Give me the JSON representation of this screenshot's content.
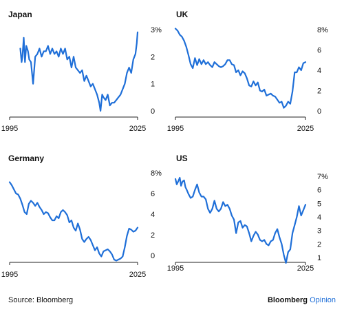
{
  "source_note": "Source: Bloomberg",
  "brand": {
    "name": "Bloomberg",
    "suffix": "Opinion",
    "suffix_color": "#1f6fd8"
  },
  "line_color": "#1f6fd8",
  "chart_data": [
    {
      "type": "line",
      "title": "Japan",
      "x_tick_labels": [
        "1995",
        "2025"
      ],
      "y_tick_labels": [
        "0",
        "1",
        "2",
        "3%"
      ],
      "y_ticks": [
        0,
        1,
        2,
        3
      ],
      "ylim": [
        0,
        3
      ],
      "xlim": [
        1995,
        2025
      ],
      "legend": "none",
      "grid": false,
      "series": [
        {
          "x": [
            1997.5,
            1997.8,
            1998.0,
            1998.3,
            1998.6,
            1998.9,
            1999.3,
            1999.6,
            2000.0,
            2000.5,
            2001.0,
            2001.5,
            2002.0,
            2002.5,
            2003.0,
            2003.5,
            2004.0,
            2004.5,
            2005.0,
            2005.5,
            2006.0,
            2006.5,
            2007.0,
            2007.5,
            2008.0,
            2008.5,
            2009.0,
            2009.5,
            2010.0,
            2010.5,
            2011.0,
            2011.5,
            2012.0,
            2012.5,
            2013.0,
            2013.5,
            2014.0,
            2014.5,
            2015.0,
            2015.5,
            2016.0,
            2016.3,
            2016.7,
            2017.0,
            2017.5,
            2018.0,
            2018.5,
            2019.0,
            2019.5,
            2020.0,
            2020.5,
            2021.0,
            2021.5,
            2022.0,
            2022.5,
            2023.0,
            2023.5,
            2024.0,
            2024.5,
            2024.8,
            2025.0
          ],
          "y": [
            2.3,
            1.8,
            2.0,
            2.7,
            1.8,
            2.4,
            2.2,
            1.9,
            1.8,
            1.0,
            2.0,
            2.1,
            2.3,
            2.0,
            2.2,
            2.2,
            2.4,
            2.1,
            2.3,
            2.1,
            2.2,
            2.0,
            2.3,
            2.1,
            2.3,
            1.9,
            2.0,
            1.6,
            2.0,
            1.6,
            1.5,
            1.4,
            1.5,
            1.1,
            1.3,
            1.1,
            0.9,
            1.0,
            0.8,
            0.6,
            0.3,
            0.0,
            0.6,
            0.5,
            0.4,
            0.6,
            0.2,
            0.3,
            0.3,
            0.4,
            0.5,
            0.6,
            0.8,
            1.0,
            1.4,
            1.6,
            1.4,
            1.9,
            2.1,
            2.5,
            2.9
          ]
        }
      ]
    },
    {
      "type": "line",
      "title": "UK",
      "x_tick_labels": [
        "1995",
        "2025"
      ],
      "y_tick_labels": [
        "0",
        "2",
        "4",
        "6",
        "8%"
      ],
      "y_ticks": [
        0,
        2,
        4,
        6,
        8
      ],
      "ylim": [
        0,
        8
      ],
      "xlim": [
        1995,
        2025
      ],
      "legend": "none",
      "grid": false,
      "series": [
        {
          "x": [
            1995.0,
            1995.5,
            1996.0,
            1996.5,
            1997.0,
            1997.5,
            1998.0,
            1998.5,
            1999.0,
            1999.5,
            2000.0,
            2000.5,
            2001.0,
            2001.5,
            2002.0,
            2002.5,
            2003.0,
            2003.5,
            2004.0,
            2004.5,
            2005.0,
            2005.5,
            2006.0,
            2006.5,
            2007.0,
            2007.5,
            2008.0,
            2008.5,
            2009.0,
            2009.5,
            2010.0,
            2010.5,
            2011.0,
            2011.5,
            2012.0,
            2012.5,
            2013.0,
            2013.5,
            2014.0,
            2014.5,
            2015.0,
            2015.5,
            2016.0,
            2016.5,
            2017.0,
            2017.5,
            2018.0,
            2018.5,
            2019.0,
            2019.5,
            2020.0,
            2020.5,
            2021.0,
            2021.5,
            2022.0,
            2022.5,
            2023.0,
            2023.5,
            2024.0,
            2024.5,
            2025.0
          ],
          "y": [
            8.1,
            7.9,
            7.5,
            7.3,
            6.9,
            6.3,
            5.5,
            4.6,
            4.2,
            5.2,
            4.5,
            5.1,
            4.6,
            5.0,
            4.6,
            4.8,
            4.5,
            4.3,
            4.8,
            4.6,
            4.4,
            4.3,
            4.4,
            4.6,
            5.0,
            5.0,
            4.6,
            4.5,
            3.8,
            4.0,
            3.5,
            3.9,
            3.7,
            3.2,
            2.5,
            2.4,
            2.9,
            2.5,
            2.8,
            2.0,
            1.9,
            2.1,
            1.5,
            1.6,
            1.7,
            1.5,
            1.4,
            1.1,
            0.8,
            0.9,
            0.3,
            0.5,
            0.9,
            0.7,
            1.9,
            3.8,
            3.8,
            4.3,
            4.0,
            4.7,
            4.8
          ]
        }
      ]
    },
    {
      "type": "line",
      "title": "Germany",
      "x_tick_labels": [
        "1995",
        "2025"
      ],
      "y_tick_labels": [
        "0",
        "2",
        "4",
        "6",
        "8%"
      ],
      "y_ticks": [
        0,
        2,
        4,
        6,
        8
      ],
      "ylim": [
        0,
        8
      ],
      "xlim": [
        1995,
        2025
      ],
      "legend": "none",
      "grid": false,
      "series": [
        {
          "x": [
            1995.0,
            1995.5,
            1996.0,
            1996.5,
            1997.0,
            1997.5,
            1998.0,
            1998.5,
            1999.0,
            1999.5,
            2000.0,
            2000.5,
            2001.0,
            2001.5,
            2002.0,
            2002.5,
            2003.0,
            2003.5,
            2004.0,
            2004.5,
            2005.0,
            2005.5,
            2006.0,
            2006.5,
            2007.0,
            2007.5,
            2008.0,
            2008.5,
            2009.0,
            2009.5,
            2010.0,
            2010.5,
            2011.0,
            2011.5,
            2012.0,
            2012.5,
            2013.0,
            2013.5,
            2014.0,
            2014.5,
            2015.0,
            2015.5,
            2016.0,
            2016.5,
            2017.0,
            2017.5,
            2018.0,
            2018.5,
            2019.0,
            2019.5,
            2020.0,
            2020.5,
            2021.0,
            2021.5,
            2022.0,
            2022.5,
            2023.0,
            2023.5,
            2024.0,
            2024.5,
            2025.0
          ],
          "y": [
            7.1,
            6.8,
            6.4,
            6.0,
            5.9,
            5.5,
            4.9,
            4.2,
            4.0,
            5.0,
            5.3,
            5.1,
            4.8,
            5.1,
            4.7,
            4.4,
            4.0,
            4.2,
            4.1,
            3.7,
            3.4,
            3.4,
            3.8,
            3.6,
            4.2,
            4.4,
            4.2,
            3.9,
            3.2,
            3.4,
            2.7,
            2.4,
            3.1,
            2.5,
            1.6,
            1.3,
            1.6,
            1.8,
            1.5,
            1.0,
            0.5,
            0.8,
            0.2,
            -0.1,
            0.4,
            0.5,
            0.6,
            0.4,
            0.1,
            -0.4,
            -0.5,
            -0.4,
            -0.3,
            -0.1,
            0.8,
            1.9,
            2.6,
            2.5,
            2.3,
            2.4,
            2.7
          ]
        }
      ]
    },
    {
      "type": "line",
      "title": "US",
      "x_tick_labels": [
        "1995",
        "2025"
      ],
      "y_tick_labels": [
        "1",
        "2",
        "3",
        "4",
        "5",
        "6",
        "7%"
      ],
      "y_ticks": [
        1,
        2,
        3,
        4,
        5,
        6,
        7
      ],
      "ylim": [
        1,
        7
      ],
      "xlim": [
        1995,
        2025
      ],
      "legend": "none",
      "grid": false,
      "series": [
        {
          "x": [
            1995.0,
            1995.3,
            1995.6,
            1996.0,
            1996.3,
            1996.6,
            1997.0,
            1997.3,
            1997.6,
            1998.0,
            1998.5,
            1999.0,
            1999.5,
            2000.0,
            2000.5,
            2001.0,
            2001.5,
            2002.0,
            2002.5,
            2003.0,
            2003.5,
            2004.0,
            2004.5,
            2005.0,
            2005.5,
            2006.0,
            2006.5,
            2007.0,
            2007.5,
            2008.0,
            2008.5,
            2009.0,
            2009.5,
            2010.0,
            2010.5,
            2011.0,
            2011.5,
            2012.0,
            2012.5,
            2013.0,
            2013.5,
            2014.0,
            2014.5,
            2015.0,
            2015.5,
            2016.0,
            2016.5,
            2017.0,
            2017.5,
            2018.0,
            2018.5,
            2019.0,
            2019.5,
            2020.0,
            2020.5,
            2021.0,
            2021.5,
            2022.0,
            2022.5,
            2023.0,
            2023.5,
            2024.0,
            2024.5,
            2025.0
          ],
          "y": [
            6.8,
            6.4,
            6.6,
            6.9,
            6.3,
            6.6,
            6.7,
            6.2,
            6.0,
            5.7,
            5.4,
            5.5,
            6.0,
            6.4,
            5.8,
            5.5,
            5.5,
            5.3,
            4.6,
            4.3,
            4.6,
            5.2,
            4.6,
            4.4,
            4.6,
            5.1,
            4.8,
            4.9,
            4.6,
            4.1,
            3.8,
            2.8,
            3.6,
            3.7,
            3.2,
            3.4,
            3.3,
            2.8,
            2.2,
            2.6,
            2.9,
            2.7,
            2.3,
            2.2,
            2.3,
            2.0,
            1.9,
            2.2,
            2.3,
            2.8,
            3.1,
            2.5,
            2.0,
            1.2,
            0.6,
            1.4,
            1.6,
            2.8,
            3.4,
            4.0,
            4.8,
            4.1,
            4.5,
            4.9
          ]
        }
      ]
    }
  ]
}
